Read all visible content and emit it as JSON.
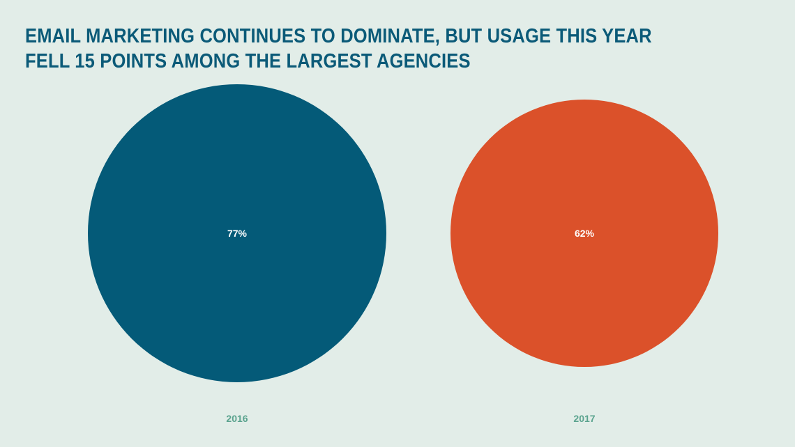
{
  "title": "EMAIL MARKETING CONTINUES TO DOMINATE, BUT USAGE THIS YEAR FELL 15 POINTS AMONG THE LARGEST AGENCIES",
  "colors": {
    "background": "#e2ede8",
    "title": "#0b5a78",
    "year_label": "#5aa38e",
    "value_label": "#ffffff"
  },
  "chart_data": {
    "type": "bubble",
    "title": "EMAIL MARKETING CONTINUES TO DOMINATE, BUT USAGE THIS YEAR FELL 15 POINTS AMONG THE LARGEST AGENCIES",
    "categories": [
      "2016",
      "2017"
    ],
    "values": [
      77,
      62
    ],
    "value_labels": [
      "77%",
      "62%"
    ],
    "unit": "%",
    "colors": [
      "#045a78",
      "#db512a"
    ],
    "legend": "none",
    "grid": false
  }
}
